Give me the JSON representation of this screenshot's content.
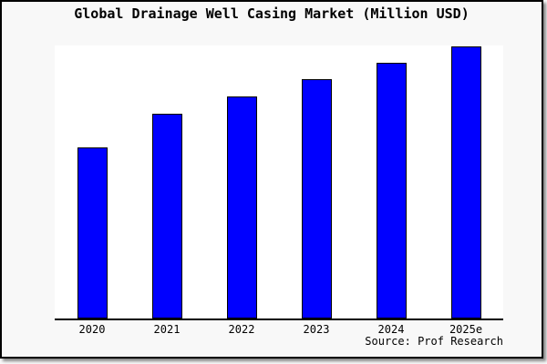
{
  "title": "Global Drainage Well Casing Market (Million USD)",
  "source": "Source: Prof Research",
  "colors": {
    "bar_fill": "#0000ff",
    "bar_border": "#000000",
    "plot_background": "#ffffff",
    "canvas_background": "#f8f8f8",
    "axis": "#000000",
    "text": "#000000"
  },
  "chart_data": {
    "type": "bar",
    "title": "Global Drainage Well Casing Market (Million USD)",
    "categories": [
      "2020",
      "2021",
      "2022",
      "2023",
      "2024",
      "2025e"
    ],
    "values": [
      188,
      225,
      244,
      263,
      281,
      299
    ],
    "units": "relative height (no y-axis scale shown in chart)",
    "xlabel": "",
    "ylabel": "",
    "ylim": [
      0,
      300
    ],
    "grid": false,
    "legend": "none",
    "y_axis_visible": false,
    "annotation": "Source: Prof Research"
  }
}
